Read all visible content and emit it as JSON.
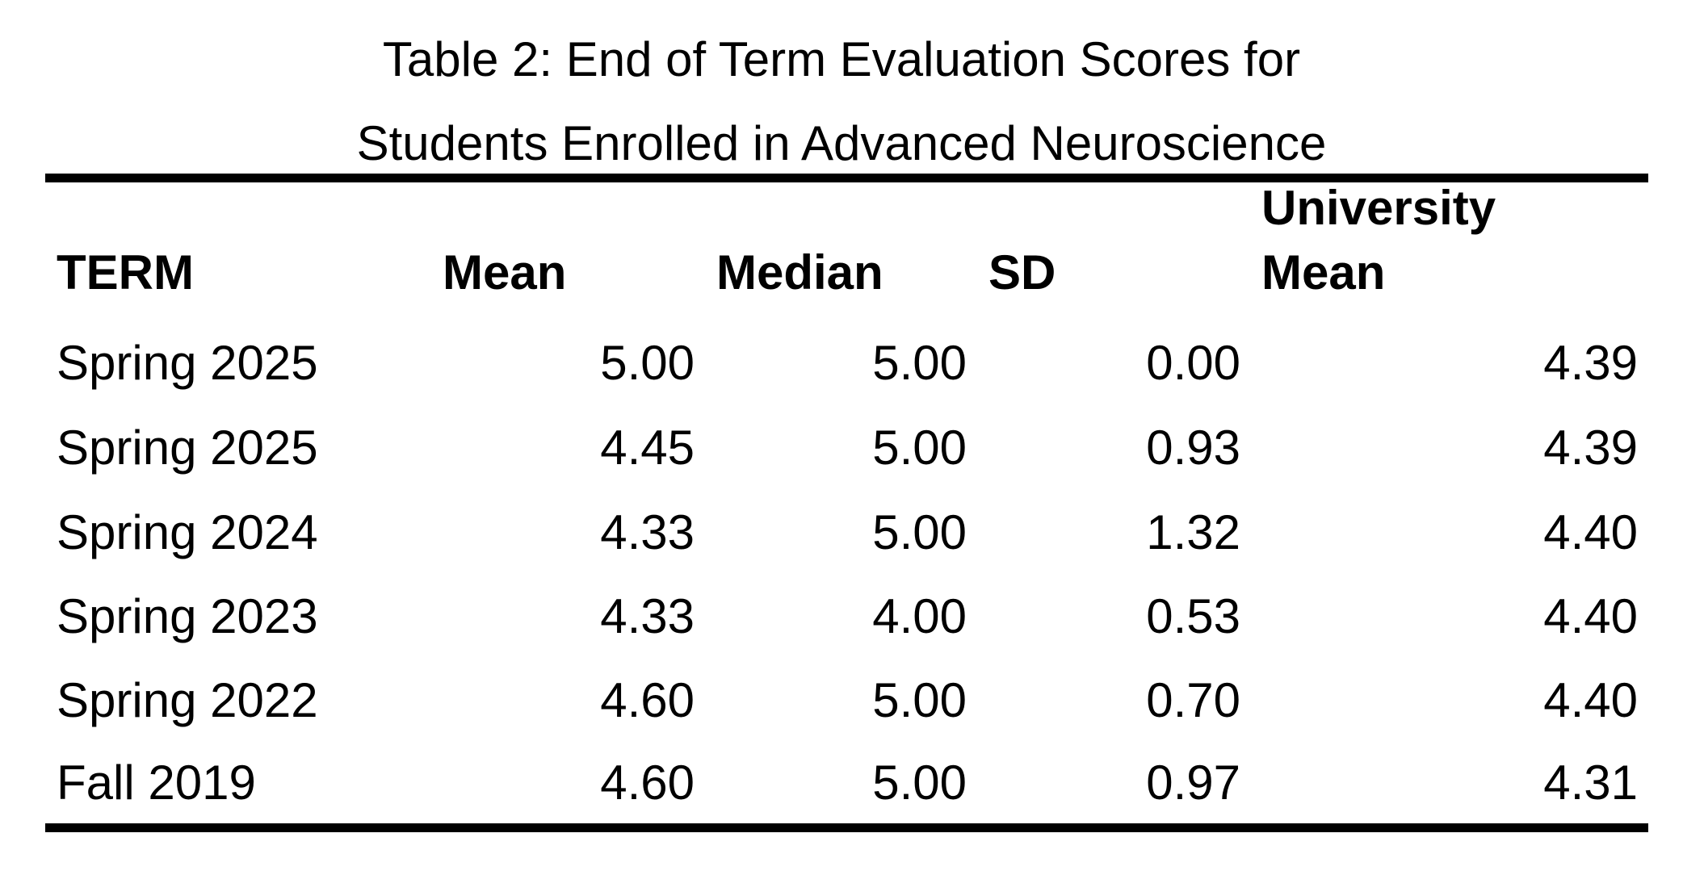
{
  "caption": {
    "line1": "Table 2: End of Term Evaluation Scores for",
    "line2": "Students Enrolled in Advanced Neuroscience"
  },
  "columns": {
    "term": "TERM",
    "mean": "Mean",
    "median": "Median",
    "sd": "SD",
    "university_line1": "University",
    "university_line2": "Mean"
  },
  "rows": [
    {
      "term": "Spring 2025",
      "mean": "5.00",
      "median": "5.00",
      "sd": "0.00",
      "university_mean": "4.39"
    },
    {
      "term": "Spring 2025",
      "mean": "4.45",
      "median": "5.00",
      "sd": "0.93",
      "university_mean": "4.39"
    },
    {
      "term": "Spring 2024",
      "mean": "4.33",
      "median": "5.00",
      "sd": "1.32",
      "university_mean": "4.40"
    },
    {
      "term": "Spring 2023",
      "mean": "4.33",
      "median": "4.00",
      "sd": "0.53",
      "university_mean": "4.40"
    },
    {
      "term": "Spring 2022",
      "mean": "4.60",
      "median": "5.00",
      "sd": "0.70",
      "university_mean": "4.40"
    },
    {
      "term": "Fall 2019",
      "mean": "4.60",
      "median": "5.00",
      "sd": "0.97",
      "university_mean": "4.31"
    }
  ]
}
